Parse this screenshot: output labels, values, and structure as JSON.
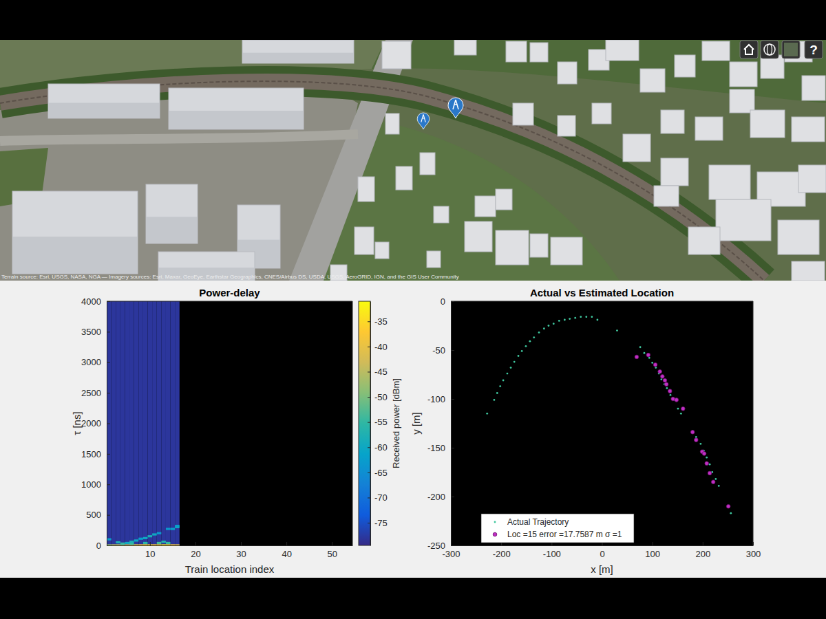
{
  "map": {
    "attribution": "Terrain source: Esri, USGS, NASA, NGA — Imagery sources: Esri, Maxar, GeoEye, Earthstar Geographics, CNES/Airbus DS, USDA, USGS, AeroGRID, IGN, and the GIS User Community",
    "help_button": "?"
  },
  "chart_data": [
    {
      "type": "heatmap",
      "title": "Power-delay",
      "x_label": "Train location index",
      "y_label": "τ [ns]",
      "xlim": [
        0.5,
        54.5
      ],
      "xticks": [
        10,
        20,
        30,
        40,
        50
      ],
      "ylim": [
        0,
        4000
      ],
      "yticks": [
        0,
        500,
        1000,
        1500,
        2000,
        2500,
        3000,
        3500,
        4000
      ],
      "floor": {
        "x": [
          1,
          2,
          3,
          4,
          5,
          6,
          7,
          8,
          9,
          10,
          11,
          12,
          13,
          14,
          15,
          16
        ],
        "power": -78
      },
      "cells": {
        "x": [
          1,
          2,
          3,
          4,
          5,
          6,
          7,
          8,
          9,
          10,
          11,
          12,
          13,
          14,
          15,
          16,
          1,
          3,
          4,
          5,
          6,
          6,
          7,
          8,
          9,
          9,
          10,
          11,
          12,
          12,
          13,
          14,
          14,
          15,
          16,
          16
        ],
        "tau": [
          0,
          0,
          0,
          0,
          0,
          0,
          0,
          0,
          0,
          0,
          0,
          0,
          0,
          0,
          0,
          0,
          100,
          50,
          30,
          40,
          30,
          60,
          80,
          110,
          40,
          120,
          150,
          180,
          40,
          200,
          60,
          40,
          270,
          270,
          300,
          320
        ],
        "power": [
          -48,
          -45,
          -44,
          -46,
          -44,
          -42,
          -40,
          -38,
          -36,
          -35,
          -37,
          -36,
          -34,
          -35,
          -38,
          -40,
          -62,
          -58,
          -55,
          -60,
          -55,
          -58,
          -60,
          -62,
          -56,
          -60,
          -58,
          -60,
          -54,
          -63,
          -57,
          -55,
          -63,
          -62,
          -60,
          -62
        ]
      },
      "colorbar_label": "Received power [dBm]",
      "colorbar_range": [
        -79.5,
        -31
      ],
      "colorbar_ticks": [
        -75,
        -70,
        -65,
        -60,
        -55,
        -50,
        -45,
        -40,
        -35
      ]
    },
    {
      "type": "scatter",
      "title": "Actual vs Estimated Location",
      "x_label": "x [m]",
      "y_label": "y [m]",
      "xlim": [
        -300,
        300
      ],
      "xticks": [
        -300,
        -200,
        -100,
        0,
        100,
        200,
        300
      ],
      "ylim": [
        -250,
        0
      ],
      "yticks": [
        -250,
        -200,
        -150,
        -100,
        -50,
        0
      ],
      "legend": "lower left",
      "series": [
        {
          "name": "Actual Trajectory",
          "color": "#3fc79e",
          "marker": "point",
          "x": [
            -228,
            -214,
            -208,
            -202,
            -196,
            -188,
            -181,
            -174,
            -166,
            -159,
            -151,
            -143,
            -135,
            -125,
            -115,
            -106,
            -96,
            -85,
            -74,
            -64,
            -53,
            -42,
            -31,
            -20,
            -9,
            30,
            76,
            84,
            94,
            100,
            107,
            113,
            118,
            124,
            129,
            136,
            143,
            151,
            157,
            180,
            187,
            196,
            202,
            208,
            214,
            219,
            226,
            232,
            256
          ],
          "y": [
            -115,
            -101,
            -94,
            -87,
            -81,
            -74,
            -68,
            -62,
            -56,
            -51,
            -46,
            -41,
            -37,
            -32,
            -28,
            -25,
            -23,
            -20,
            -19,
            -18,
            -17,
            -16,
            -16,
            -16,
            -19,
            -30,
            -47,
            -53,
            -58,
            -63,
            -68,
            -74,
            -80,
            -85,
            -89,
            -96,
            -101,
            -110,
            -115,
            -133,
            -139,
            -146,
            -153,
            -160,
            -167,
            -175,
            -182,
            -189,
            -217
          ]
        },
        {
          "name": "Loc =15 error =17.7587 m σ =1",
          "color": "#c02fc4",
          "marker": "circle",
          "x": [
            69,
            92,
            106,
            115,
            120,
            125,
            128,
            135,
            141,
            148,
            161,
            180,
            187,
            199,
            203,
            208,
            214,
            221,
            251
          ],
          "y": [
            -57,
            -55,
            -65,
            -72,
            -77,
            -81,
            -85,
            -92,
            -100,
            -101,
            -110,
            -134,
            -142,
            -154,
            -156,
            -166,
            -176,
            -185,
            -210
          ]
        }
      ]
    }
  ]
}
